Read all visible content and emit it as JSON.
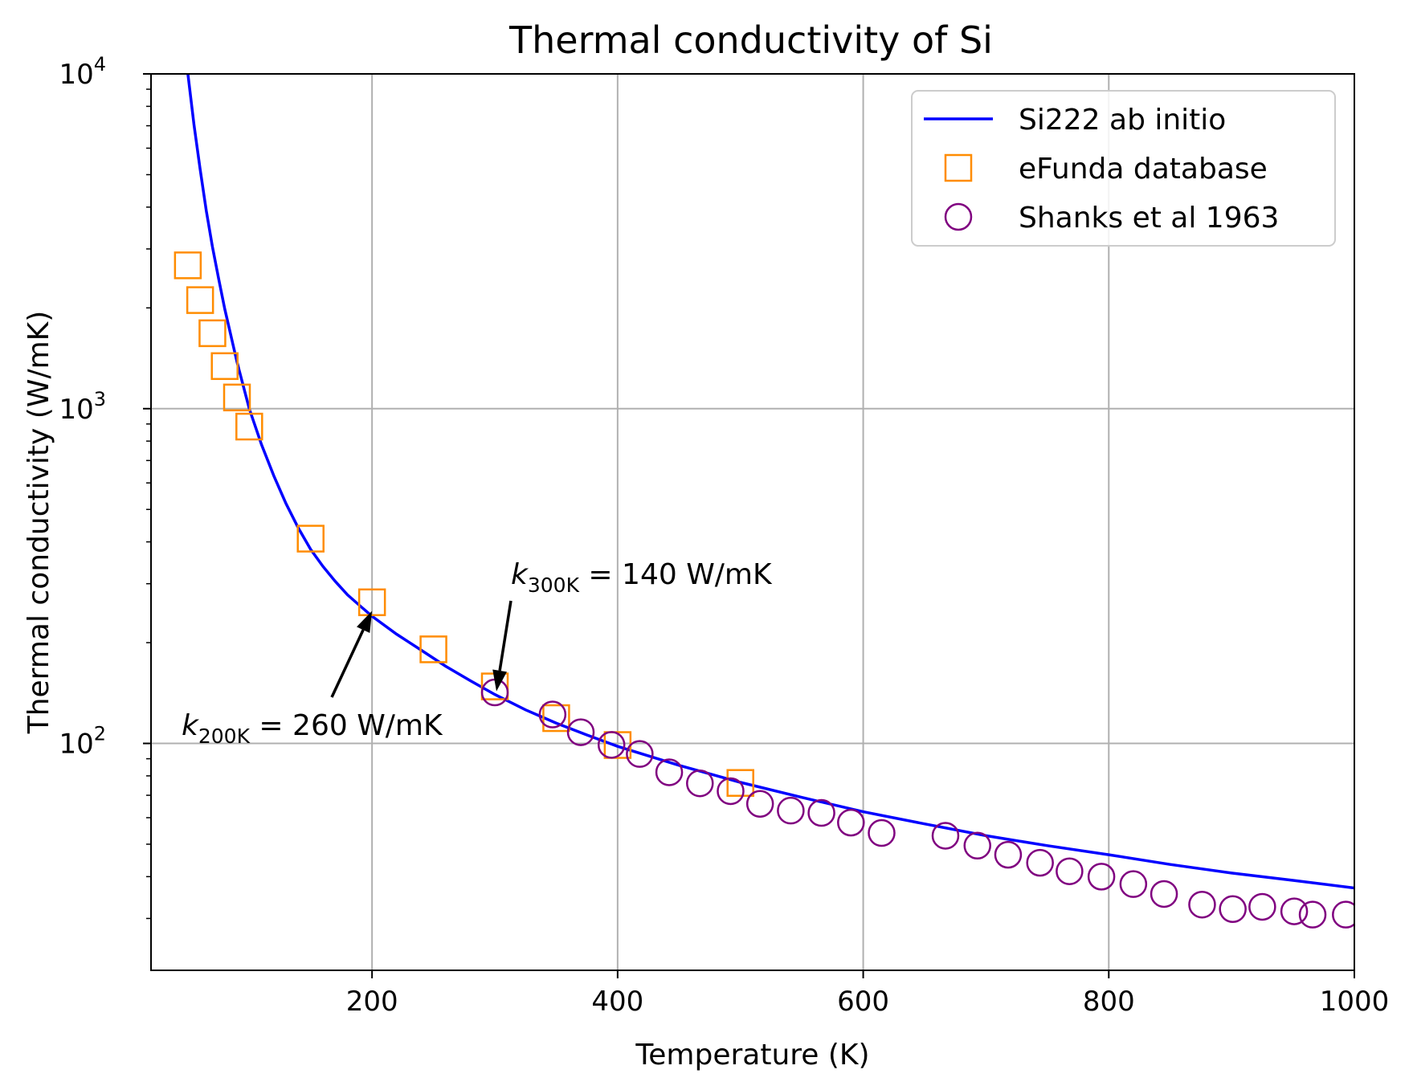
{
  "chart_data": {
    "type": "line",
    "title": "Thermal conductivity of Si",
    "xlabel": "Temperature (K)",
    "ylabel": "Thermal conductivity (W/mK)",
    "xscale": "linear",
    "yscale": "log",
    "xlim": [
      20,
      1000
    ],
    "ylim": [
      21,
      10000
    ],
    "grid": true,
    "legend_loc": "top-right",
    "xticks": [
      200,
      400,
      600,
      800,
      1000
    ],
    "xtick_labels": [
      "200",
      "400",
      "600",
      "800",
      "1000"
    ],
    "yticks": [
      {
        "value": 100,
        "base": "10",
        "exp": "2"
      },
      {
        "value": 1000,
        "base": "10",
        "exp": "3"
      },
      {
        "value": 10000,
        "base": "10",
        "exp": "4"
      }
    ],
    "series": [
      {
        "name": "Si222 ab initio",
        "kind": "line",
        "color": "#0000ff",
        "x": [
          50,
          55,
          60,
          65,
          70,
          75,
          80,
          90,
          100,
          110,
          120,
          130,
          140,
          150,
          160,
          170,
          180,
          190,
          200,
          220,
          240,
          260,
          280,
          300,
          325,
          350,
          375,
          400,
          450,
          500,
          550,
          600,
          650,
          700,
          750,
          800,
          850,
          900,
          950,
          1000
        ],
        "y": [
          10000,
          7050,
          5200,
          3900,
          3050,
          2450,
          1990,
          1380,
          1000,
          780,
          630,
          520,
          440,
          380,
          338,
          305,
          278,
          258,
          240,
          212,
          190,
          170,
          154,
          140,
          126,
          115,
          106,
          98,
          86,
          76.5,
          69,
          62.5,
          57.5,
          53,
          49.5,
          46.5,
          43.5,
          41,
          39,
          37
        ]
      },
      {
        "name": "eFunda database",
        "kind": "scatter",
        "marker": "square",
        "color": "#ff8c00",
        "x": [
          50,
          60,
          70,
          80,
          90,
          100,
          150,
          200,
          250,
          300,
          350,
          400,
          500
        ],
        "y": [
          2680,
          2110,
          1680,
          1340,
          1080,
          884,
          409,
          264,
          191,
          148,
          119,
          98.9,
          76.2
        ]
      },
      {
        "name": "Shanks et al 1963",
        "kind": "scatter",
        "marker": "circle",
        "color": "#800080",
        "x": [
          300,
          347,
          370,
          395,
          418,
          442,
          467,
          492,
          516,
          541,
          566,
          590,
          615,
          667,
          693,
          718,
          744,
          768,
          794,
          820,
          845,
          876,
          901,
          925,
          951,
          966,
          993
        ],
        "y": [
          142,
          122,
          108,
          99,
          93,
          82,
          76,
          72,
          66,
          63,
          62,
          58,
          54,
          53,
          49.5,
          46.5,
          44,
          41.5,
          40,
          38,
          35.5,
          33,
          32,
          32.5,
          31.5,
          30.8,
          30.8
        ]
      }
    ],
    "annotations": [
      {
        "base": "k",
        "sub": "200K",
        "value_text": " = 260 W/mK",
        "arrow_to_x": 200,
        "arrow_to_y": 260
      },
      {
        "base": "k",
        "sub": "300K",
        "value_text": " = 140 W/mK",
        "arrow_to_x": 300,
        "arrow_to_y": 140
      }
    ]
  }
}
